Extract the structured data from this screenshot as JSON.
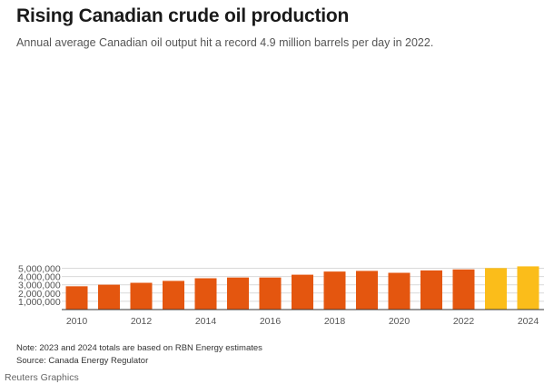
{
  "title": "Rising Canadian crude oil production",
  "subtitle": "Annual average Canadian oil output hit a record 4.9 million barrels per day in 2022.",
  "note": "Note: 2023 and 2024 totals are based on RBN Energy estimates",
  "source": "Source: Canada Energy Regulator",
  "credit": "Reuters Graphics",
  "colors": {
    "actual": "#e4560f",
    "estimate": "#fbbd1a",
    "gridline": "#d9d9d9",
    "axis": "#333333"
  },
  "chart_data": {
    "type": "bar",
    "categories": [
      "2010",
      "2011",
      "2012",
      "2013",
      "2014",
      "2015",
      "2016",
      "2017",
      "2018",
      "2019",
      "2020",
      "2021",
      "2022",
      "2023",
      "2024"
    ],
    "values": [
      2820000,
      3010000,
      3240000,
      3470000,
      3790000,
      3880000,
      3880000,
      4220000,
      4600000,
      4680000,
      4450000,
      4740000,
      4860000,
      5020000,
      5230000
    ],
    "estimated": [
      false,
      false,
      false,
      false,
      false,
      false,
      false,
      false,
      false,
      false,
      false,
      false,
      false,
      true,
      true
    ],
    "x_tick_labels": [
      "2010",
      "2012",
      "2014",
      "2016",
      "2018",
      "2020",
      "2022",
      "2024"
    ],
    "y_ticks": [
      1000000,
      2000000,
      3000000,
      4000000,
      5000000
    ],
    "y_tick_labels": [
      "1,000,000",
      "2,000,000",
      "3,000,000",
      "4,000,000",
      "5,000,000"
    ],
    "ylim": [
      0,
      5500000
    ],
    "grid": true,
    "xlabel": "",
    "ylabel": ""
  }
}
